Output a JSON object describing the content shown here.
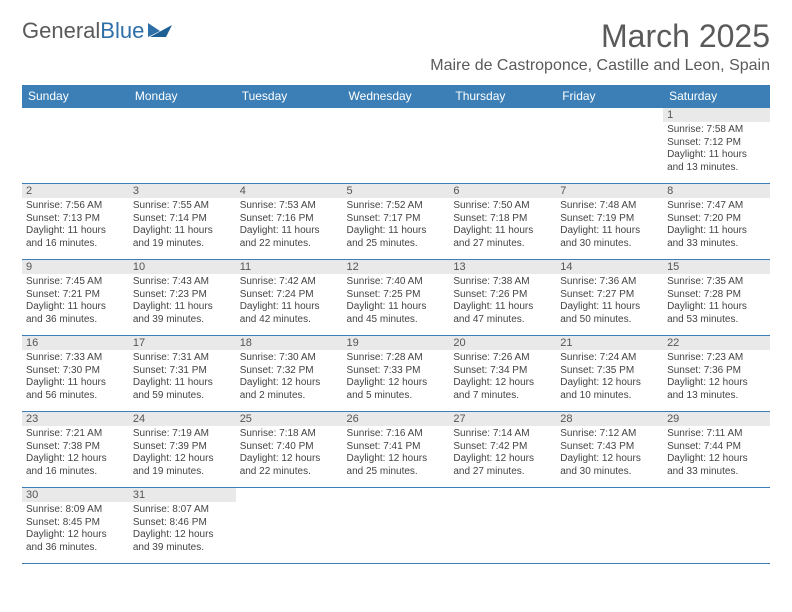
{
  "logo": {
    "text1": "General",
    "text2": "Blue",
    "color1": "#5a5a5a",
    "color2": "#2f6fa8"
  },
  "title": "March 2025",
  "location": "Maire de Castroponce, Castille and Leon, Spain",
  "colors": {
    "header_bg": "#3b7fb6",
    "header_text": "#ffffff",
    "daynum_bg": "#e9e9e9",
    "border": "#3b7fb6"
  },
  "weekdays": [
    "Sunday",
    "Monday",
    "Tuesday",
    "Wednesday",
    "Thursday",
    "Friday",
    "Saturday"
  ],
  "weeks": [
    [
      {
        "empty": true
      },
      {
        "empty": true
      },
      {
        "empty": true
      },
      {
        "empty": true
      },
      {
        "empty": true
      },
      {
        "empty": true
      },
      {
        "num": "1",
        "sunrise": "Sunrise: 7:58 AM",
        "sunset": "Sunset: 7:12 PM",
        "daylight": "Daylight: 11 hours and 13 minutes."
      }
    ],
    [
      {
        "num": "2",
        "sunrise": "Sunrise: 7:56 AM",
        "sunset": "Sunset: 7:13 PM",
        "daylight": "Daylight: 11 hours and 16 minutes."
      },
      {
        "num": "3",
        "sunrise": "Sunrise: 7:55 AM",
        "sunset": "Sunset: 7:14 PM",
        "daylight": "Daylight: 11 hours and 19 minutes."
      },
      {
        "num": "4",
        "sunrise": "Sunrise: 7:53 AM",
        "sunset": "Sunset: 7:16 PM",
        "daylight": "Daylight: 11 hours and 22 minutes."
      },
      {
        "num": "5",
        "sunrise": "Sunrise: 7:52 AM",
        "sunset": "Sunset: 7:17 PM",
        "daylight": "Daylight: 11 hours and 25 minutes."
      },
      {
        "num": "6",
        "sunrise": "Sunrise: 7:50 AM",
        "sunset": "Sunset: 7:18 PM",
        "daylight": "Daylight: 11 hours and 27 minutes."
      },
      {
        "num": "7",
        "sunrise": "Sunrise: 7:48 AM",
        "sunset": "Sunset: 7:19 PM",
        "daylight": "Daylight: 11 hours and 30 minutes."
      },
      {
        "num": "8",
        "sunrise": "Sunrise: 7:47 AM",
        "sunset": "Sunset: 7:20 PM",
        "daylight": "Daylight: 11 hours and 33 minutes."
      }
    ],
    [
      {
        "num": "9",
        "sunrise": "Sunrise: 7:45 AM",
        "sunset": "Sunset: 7:21 PM",
        "daylight": "Daylight: 11 hours and 36 minutes."
      },
      {
        "num": "10",
        "sunrise": "Sunrise: 7:43 AM",
        "sunset": "Sunset: 7:23 PM",
        "daylight": "Daylight: 11 hours and 39 minutes."
      },
      {
        "num": "11",
        "sunrise": "Sunrise: 7:42 AM",
        "sunset": "Sunset: 7:24 PM",
        "daylight": "Daylight: 11 hours and 42 minutes."
      },
      {
        "num": "12",
        "sunrise": "Sunrise: 7:40 AM",
        "sunset": "Sunset: 7:25 PM",
        "daylight": "Daylight: 11 hours and 45 minutes."
      },
      {
        "num": "13",
        "sunrise": "Sunrise: 7:38 AM",
        "sunset": "Sunset: 7:26 PM",
        "daylight": "Daylight: 11 hours and 47 minutes."
      },
      {
        "num": "14",
        "sunrise": "Sunrise: 7:36 AM",
        "sunset": "Sunset: 7:27 PM",
        "daylight": "Daylight: 11 hours and 50 minutes."
      },
      {
        "num": "15",
        "sunrise": "Sunrise: 7:35 AM",
        "sunset": "Sunset: 7:28 PM",
        "daylight": "Daylight: 11 hours and 53 minutes."
      }
    ],
    [
      {
        "num": "16",
        "sunrise": "Sunrise: 7:33 AM",
        "sunset": "Sunset: 7:30 PM",
        "daylight": "Daylight: 11 hours and 56 minutes."
      },
      {
        "num": "17",
        "sunrise": "Sunrise: 7:31 AM",
        "sunset": "Sunset: 7:31 PM",
        "daylight": "Daylight: 11 hours and 59 minutes."
      },
      {
        "num": "18",
        "sunrise": "Sunrise: 7:30 AM",
        "sunset": "Sunset: 7:32 PM",
        "daylight": "Daylight: 12 hours and 2 minutes."
      },
      {
        "num": "19",
        "sunrise": "Sunrise: 7:28 AM",
        "sunset": "Sunset: 7:33 PM",
        "daylight": "Daylight: 12 hours and 5 minutes."
      },
      {
        "num": "20",
        "sunrise": "Sunrise: 7:26 AM",
        "sunset": "Sunset: 7:34 PM",
        "daylight": "Daylight: 12 hours and 7 minutes."
      },
      {
        "num": "21",
        "sunrise": "Sunrise: 7:24 AM",
        "sunset": "Sunset: 7:35 PM",
        "daylight": "Daylight: 12 hours and 10 minutes."
      },
      {
        "num": "22",
        "sunrise": "Sunrise: 7:23 AM",
        "sunset": "Sunset: 7:36 PM",
        "daylight": "Daylight: 12 hours and 13 minutes."
      }
    ],
    [
      {
        "num": "23",
        "sunrise": "Sunrise: 7:21 AM",
        "sunset": "Sunset: 7:38 PM",
        "daylight": "Daylight: 12 hours and 16 minutes."
      },
      {
        "num": "24",
        "sunrise": "Sunrise: 7:19 AM",
        "sunset": "Sunset: 7:39 PM",
        "daylight": "Daylight: 12 hours and 19 minutes."
      },
      {
        "num": "25",
        "sunrise": "Sunrise: 7:18 AM",
        "sunset": "Sunset: 7:40 PM",
        "daylight": "Daylight: 12 hours and 22 minutes."
      },
      {
        "num": "26",
        "sunrise": "Sunrise: 7:16 AM",
        "sunset": "Sunset: 7:41 PM",
        "daylight": "Daylight: 12 hours and 25 minutes."
      },
      {
        "num": "27",
        "sunrise": "Sunrise: 7:14 AM",
        "sunset": "Sunset: 7:42 PM",
        "daylight": "Daylight: 12 hours and 27 minutes."
      },
      {
        "num": "28",
        "sunrise": "Sunrise: 7:12 AM",
        "sunset": "Sunset: 7:43 PM",
        "daylight": "Daylight: 12 hours and 30 minutes."
      },
      {
        "num": "29",
        "sunrise": "Sunrise: 7:11 AM",
        "sunset": "Sunset: 7:44 PM",
        "daylight": "Daylight: 12 hours and 33 minutes."
      }
    ],
    [
      {
        "num": "30",
        "sunrise": "Sunrise: 8:09 AM",
        "sunset": "Sunset: 8:45 PM",
        "daylight": "Daylight: 12 hours and 36 minutes."
      },
      {
        "num": "31",
        "sunrise": "Sunrise: 8:07 AM",
        "sunset": "Sunset: 8:46 PM",
        "daylight": "Daylight: 12 hours and 39 minutes."
      },
      {
        "empty": true
      },
      {
        "empty": true
      },
      {
        "empty": true
      },
      {
        "empty": true
      },
      {
        "empty": true
      }
    ]
  ]
}
